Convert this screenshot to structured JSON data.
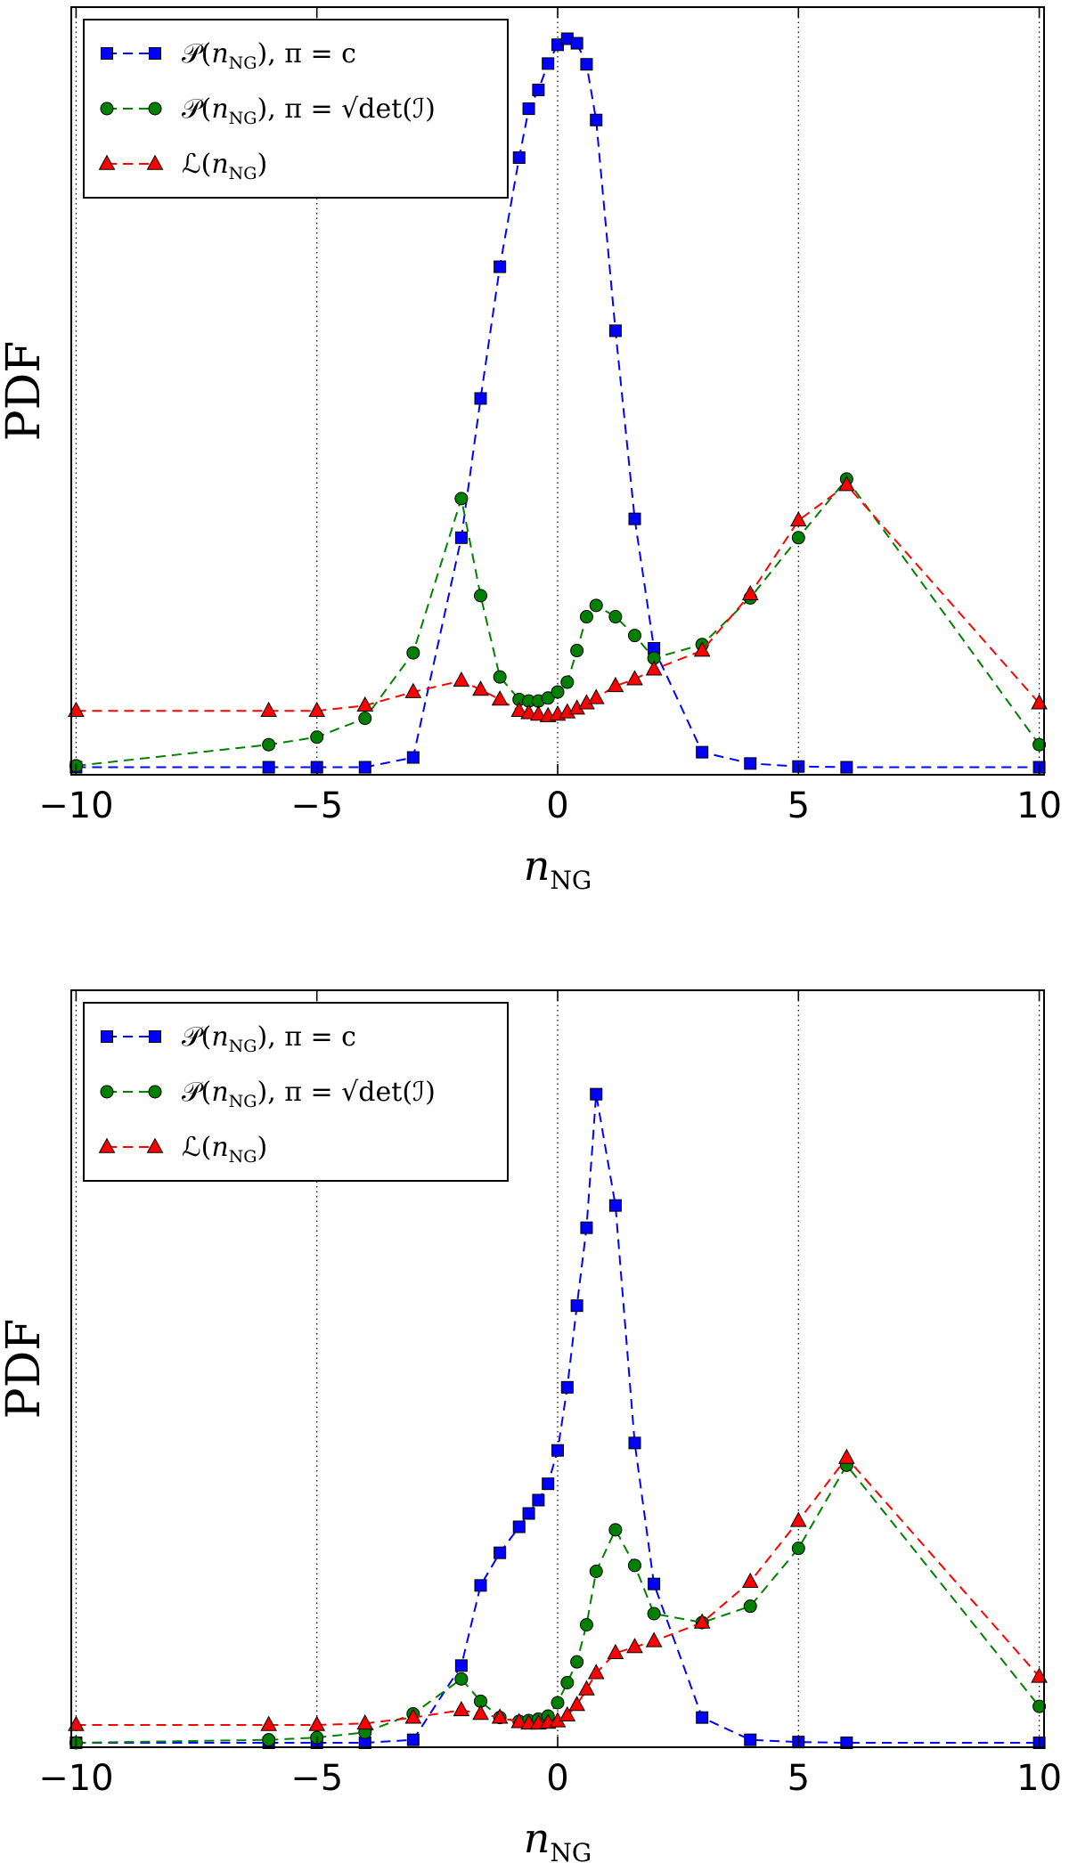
{
  "chart_data": [
    {
      "type": "line",
      "xlabel": {
        "base": "n",
        "sub": "NG"
      },
      "ylabel": "PDF",
      "xlim": [
        -10.1,
        10.1
      ],
      "ylim": [
        0,
        1.02
      ],
      "xticks": [
        "−10",
        "−5",
        "0",
        "5",
        "10"
      ],
      "xtick_values": [
        -10,
        -5,
        0,
        5,
        10
      ],
      "vgrid_values": [
        -10,
        -5,
        0,
        5,
        10
      ],
      "grid": "vertical dotted",
      "legend_position": "top-left",
      "series": [
        {
          "name": "P(n_NG), π = c",
          "label_parts": [
            "𝒫(",
            "n",
            "NG",
            "),  π = c"
          ],
          "color": "#0000ff",
          "marker": "square",
          "x": [
            -10,
            -6,
            -5,
            -4,
            -3,
            -2,
            -1.6,
            -1.2,
            -0.8,
            -0.6,
            -0.4,
            -0.2,
            0,
            0.2,
            0.4,
            0.6,
            0.8,
            1.2,
            1.6,
            2,
            3,
            4,
            5,
            6,
            10
          ],
          "y": [
            0.01,
            0.01,
            0.01,
            0.01,
            0.023,
            0.315,
            0.5,
            0.675,
            0.82,
            0.885,
            0.91,
            0.945,
            0.97,
            0.978,
            0.972,
            0.944,
            0.87,
            0.59,
            0.34,
            0.168,
            0.03,
            0.015,
            0.011,
            0.01,
            0.01
          ]
        },
        {
          "name": "P(n_NG), π = √det(I)",
          "label_parts": [
            "𝒫(",
            "n",
            "NG",
            "),  π = √det(ℐ)"
          ],
          "color": "#008000",
          "marker": "circle",
          "x": [
            -10,
            -6,
            -5,
            -4,
            -3,
            -2,
            -1.6,
            -1.2,
            -0.8,
            -0.6,
            -0.4,
            -0.2,
            0,
            0.2,
            0.4,
            0.6,
            0.8,
            1.2,
            1.6,
            2,
            3,
            4,
            5,
            6,
            10
          ],
          "y": [
            0.012,
            0.04,
            0.05,
            0.075,
            0.162,
            0.367,
            0.238,
            0.13,
            0.1,
            0.098,
            0.098,
            0.102,
            0.11,
            0.123,
            0.165,
            0.21,
            0.225,
            0.21,
            0.185,
            0.155,
            0.173,
            0.235,
            0.315,
            0.393,
            0.04
          ]
        },
        {
          "name": "L(n_NG)",
          "label_parts": [
            "ℒ(",
            "n",
            "NG",
            ")"
          ],
          "color": "#ff0000",
          "marker": "triangle",
          "x": [
            -10,
            -6,
            -5,
            -4,
            -3,
            -2,
            -1.6,
            -1.2,
            -0.8,
            -0.6,
            -0.4,
            -0.2,
            0,
            0.2,
            0.4,
            0.6,
            0.8,
            1.2,
            1.6,
            2,
            3,
            4,
            5,
            6,
            10
          ],
          "y": [
            0.085,
            0.085,
            0.085,
            0.092,
            0.11,
            0.125,
            0.113,
            0.1,
            0.085,
            0.082,
            0.08,
            0.078,
            0.08,
            0.083,
            0.088,
            0.095,
            0.102,
            0.118,
            0.127,
            0.14,
            0.165,
            0.24,
            0.338,
            0.385,
            0.095
          ]
        }
      ]
    },
    {
      "type": "line",
      "xlabel": {
        "base": "n",
        "sub": "NG"
      },
      "ylabel": "PDF",
      "xlim": [
        -10.1,
        10.1
      ],
      "ylim": [
        0,
        1.02
      ],
      "xticks": [
        "−10",
        "−5",
        "0",
        "5",
        "10"
      ],
      "xtick_values": [
        -10,
        -5,
        0,
        5,
        10
      ],
      "vgrid_values": [
        -10,
        -5,
        0,
        5,
        10
      ],
      "grid": "vertical dotted",
      "legend_position": "top-left",
      "series": [
        {
          "name": "P(n_NG), π = c",
          "label_parts": [
            "𝒫(",
            "n",
            "NG",
            "),  π = c"
          ],
          "color": "#0000ff",
          "marker": "square",
          "x": [
            -10,
            -6,
            -5,
            -4,
            -3,
            -2,
            -1.6,
            -1.2,
            -0.8,
            -0.6,
            -0.4,
            -0.2,
            0,
            0.2,
            0.4,
            0.6,
            0.8,
            1.2,
            1.6,
            2,
            3,
            4,
            5,
            6,
            10
          ],
          "y": [
            0.006,
            0.006,
            0.006,
            0.006,
            0.01,
            0.11,
            0.218,
            0.262,
            0.297,
            0.315,
            0.333,
            0.355,
            0.4,
            0.485,
            0.595,
            0.7,
            0.88,
            0.73,
            0.41,
            0.22,
            0.04,
            0.01,
            0.007,
            0.006,
            0.006
          ]
        },
        {
          "name": "P(n_NG), π = √det(I)",
          "label_parts": [
            "𝒫(",
            "n",
            "NG",
            "),  π = √det(ℐ)"
          ],
          "color": "#008000",
          "marker": "circle",
          "x": [
            -10,
            -6,
            -5,
            -4,
            -3,
            -2,
            -1.6,
            -1.2,
            -0.8,
            -0.6,
            -0.4,
            -0.2,
            0,
            0.2,
            0.4,
            0.6,
            0.8,
            1.2,
            1.6,
            2,
            3,
            4,
            5,
            6,
            10
          ],
          "y": [
            0.006,
            0.01,
            0.013,
            0.02,
            0.045,
            0.092,
            0.062,
            0.04,
            0.035,
            0.036,
            0.038,
            0.042,
            0.06,
            0.087,
            0.115,
            0.165,
            0.237,
            0.293,
            0.245,
            0.18,
            0.168,
            0.19,
            0.268,
            0.38,
            0.055
          ]
        },
        {
          "name": "L(n_NG)",
          "label_parts": [
            "ℒ(",
            "n",
            "NG",
            ")"
          ],
          "color": "#ff0000",
          "marker": "triangle",
          "x": [
            -10,
            -6,
            -5,
            -4,
            -3,
            -2,
            -1.6,
            -1.2,
            -0.8,
            -0.6,
            -0.4,
            -0.2,
            0,
            0.2,
            0.4,
            0.6,
            0.8,
            1.2,
            1.6,
            2,
            3,
            4,
            5,
            6,
            10
          ],
          "y": [
            0.03,
            0.03,
            0.03,
            0.032,
            0.04,
            0.05,
            0.045,
            0.04,
            0.034,
            0.032,
            0.032,
            0.033,
            0.035,
            0.043,
            0.057,
            0.078,
            0.1,
            0.127,
            0.135,
            0.143,
            0.168,
            0.223,
            0.305,
            0.39,
            0.095
          ]
        }
      ]
    }
  ]
}
